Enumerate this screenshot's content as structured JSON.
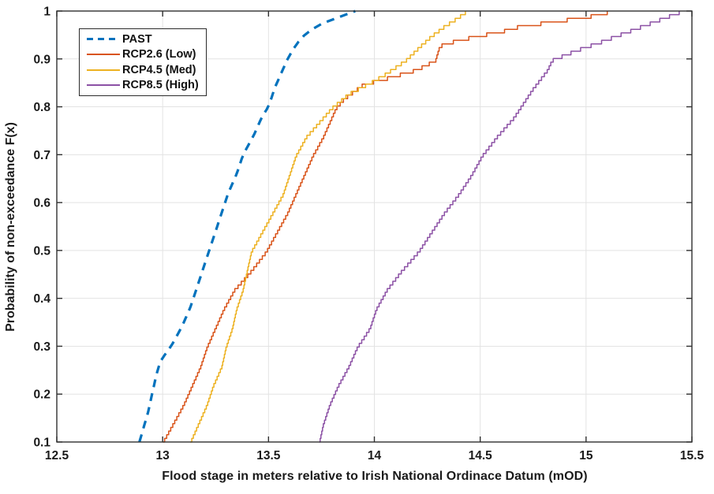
{
  "figure": {
    "background": "#ffffff",
    "frame_color": "#2f2f2f",
    "grid_color": "#e3e3e3",
    "tick_color": "#2f2f2f",
    "text_color": "#1a1a1a"
  },
  "chart_data": {
    "type": "line",
    "subtype": "empirical-cdf",
    "title": "",
    "xlabel": "Flood stage in meters relative to Irish National Ordinace Datum (mOD)",
    "ylabel": "Probability of non-exceedance F(x)",
    "xlim": [
      12.5,
      15.5
    ],
    "ylim": [
      0.1,
      1.0
    ],
    "xticks": [
      12.5,
      13,
      13.5,
      14,
      14.5,
      15,
      15.5
    ],
    "xtick_labels": [
      "12.5",
      "13",
      "13.5",
      "14",
      "14.5",
      "15",
      "15.5"
    ],
    "yticks": [
      0.1,
      0.2,
      0.3,
      0.4,
      0.5,
      0.6,
      0.7,
      0.8,
      0.9,
      1.0
    ],
    "ytick_labels": [
      "0.1",
      "0.2",
      "0.3",
      "0.4",
      "0.5",
      "0.6",
      "0.7",
      "0.8",
      "0.9",
      "1"
    ],
    "grid": true,
    "legend_position": "top-left",
    "series": [
      {
        "key": "past",
        "name": "PAST",
        "color": "#0072BD",
        "style": "dashed",
        "width": 3.2,
        "F": [
          0.1,
          0.13,
          0.16,
          0.2,
          0.24,
          0.27,
          0.3,
          0.34,
          0.38,
          0.42,
          0.46,
          0.5,
          0.54,
          0.58,
          0.62,
          0.66,
          0.7,
          0.74,
          0.78,
          0.8,
          0.84,
          0.88,
          0.9,
          0.93,
          0.95,
          0.97,
          0.98,
          0.99,
          1.0
        ],
        "x": [
          12.89,
          12.91,
          12.93,
          12.95,
          12.97,
          12.99,
          13.04,
          13.09,
          13.13,
          13.16,
          13.19,
          13.22,
          13.25,
          13.28,
          13.31,
          13.35,
          13.38,
          13.43,
          13.47,
          13.5,
          13.53,
          13.57,
          13.59,
          13.63,
          13.67,
          13.73,
          13.79,
          13.85,
          13.91
        ]
      },
      {
        "key": "rcp26",
        "name": "RCP2.6 (Low)",
        "color": "#D95319",
        "style": "solid",
        "width": 1.5,
        "F": [
          0.1,
          0.14,
          0.18,
          0.22,
          0.26,
          0.3,
          0.34,
          0.38,
          0.42,
          0.46,
          0.5,
          0.54,
          0.58,
          0.62,
          0.66,
          0.7,
          0.74,
          0.78,
          0.8,
          0.82,
          0.85,
          0.86,
          0.88,
          0.9,
          0.93,
          0.94,
          0.95,
          0.96,
          0.97,
          0.98,
          0.99,
          1.0
        ],
        "x": [
          13.0,
          13.05,
          13.1,
          13.14,
          13.18,
          13.21,
          13.25,
          13.29,
          13.34,
          13.42,
          13.49,
          13.54,
          13.59,
          13.63,
          13.67,
          13.71,
          13.76,
          13.8,
          13.82,
          13.86,
          13.95,
          14.04,
          14.2,
          14.29,
          14.31,
          14.38,
          14.48,
          14.6,
          14.68,
          14.83,
          15.0,
          15.1
        ]
      },
      {
        "key": "rcp45",
        "name": "RCP4.5 (Med)",
        "color": "#EDB120",
        "style": "solid",
        "width": 1.5,
        "F": [
          0.1,
          0.14,
          0.18,
          0.22,
          0.26,
          0.3,
          0.34,
          0.38,
          0.42,
          0.46,
          0.5,
          0.54,
          0.58,
          0.62,
          0.66,
          0.7,
          0.74,
          0.78,
          0.8,
          0.83,
          0.85,
          0.87,
          0.9,
          0.93,
          0.95,
          0.97,
          0.99,
          1.0
        ],
        "x": [
          13.13,
          13.17,
          13.21,
          13.24,
          13.28,
          13.3,
          13.33,
          13.35,
          13.38,
          13.4,
          13.42,
          13.47,
          13.52,
          13.57,
          13.6,
          13.63,
          13.68,
          13.76,
          13.8,
          13.88,
          13.97,
          14.05,
          14.15,
          14.22,
          14.27,
          14.33,
          14.4,
          14.43
        ]
      },
      {
        "key": "rcp85",
        "name": "RCP8.5 (High)",
        "color": "#8C51A5",
        "style": "solid",
        "width": 1.5,
        "F": [
          0.1,
          0.14,
          0.18,
          0.22,
          0.26,
          0.3,
          0.34,
          0.38,
          0.42,
          0.46,
          0.5,
          0.54,
          0.58,
          0.62,
          0.66,
          0.7,
          0.74,
          0.78,
          0.8,
          0.84,
          0.88,
          0.9,
          0.92,
          0.94,
          0.96,
          0.98,
          1.0
        ],
        "x": [
          13.74,
          13.76,
          13.79,
          13.83,
          13.88,
          13.92,
          13.98,
          14.01,
          14.06,
          14.13,
          14.21,
          14.27,
          14.33,
          14.4,
          14.46,
          14.51,
          14.58,
          14.66,
          14.69,
          14.75,
          14.82,
          14.84,
          14.95,
          15.08,
          15.2,
          15.32,
          15.44
        ]
      }
    ]
  }
}
